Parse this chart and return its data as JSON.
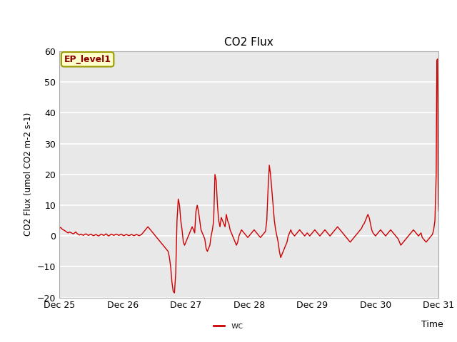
{
  "title": "CO2 Flux",
  "xlabel": "Time",
  "ylabel": "CO2 Flux (umol CO2 m-2 s-1)",
  "ylim": [
    -20,
    60
  ],
  "yticks": [
    -20,
    -10,
    0,
    10,
    20,
    30,
    40,
    50,
    60
  ],
  "line_color": "#cc0000",
  "line_label": "wc",
  "legend_label": "EP_level1",
  "legend_box_facecolor": "#ffffcc",
  "legend_box_edgecolor": "#999900",
  "legend_text_color": "#880000",
  "bg_color": "#e8e8e8",
  "fig_bg_color": "#ffffff",
  "x_start": 0.0,
  "x_end": 6.0,
  "xtick_positions": [
    0,
    1,
    2,
    3,
    4,
    5,
    6
  ],
  "xtick_labels": [
    "Dec 25",
    "Dec 26",
    "Dec 27",
    "Dec 28",
    "Dec 29",
    "Dec 30",
    "Dec 31"
  ],
  "data_points": [
    [
      0.0,
      2.5
    ],
    [
      0.02,
      2.8
    ],
    [
      0.04,
      2.3
    ],
    [
      0.06,
      2.0
    ],
    [
      0.08,
      1.8
    ],
    [
      0.1,
      1.5
    ],
    [
      0.12,
      1.2
    ],
    [
      0.14,
      1.0
    ],
    [
      0.16,
      1.3
    ],
    [
      0.18,
      1.1
    ],
    [
      0.2,
      0.9
    ],
    [
      0.22,
      0.7
    ],
    [
      0.24,
      1.0
    ],
    [
      0.26,
      1.3
    ],
    [
      0.28,
      0.8
    ],
    [
      0.3,
      0.5
    ],
    [
      0.32,
      0.3
    ],
    [
      0.34,
      0.6
    ],
    [
      0.36,
      0.4
    ],
    [
      0.38,
      0.2
    ],
    [
      0.4,
      0.5
    ],
    [
      0.42,
      0.7
    ],
    [
      0.44,
      0.4
    ],
    [
      0.46,
      0.2
    ],
    [
      0.48,
      0.4
    ],
    [
      0.5,
      0.6
    ],
    [
      0.52,
      0.3
    ],
    [
      0.54,
      0.1
    ],
    [
      0.56,
      0.3
    ],
    [
      0.58,
      0.5
    ],
    [
      0.6,
      0.2
    ],
    [
      0.62,
      0.0
    ],
    [
      0.64,
      0.3
    ],
    [
      0.66,
      0.6
    ],
    [
      0.68,
      0.4
    ],
    [
      0.7,
      0.2
    ],
    [
      0.72,
      0.4
    ],
    [
      0.74,
      0.7
    ],
    [
      0.76,
      0.3
    ],
    [
      0.78,
      0.0
    ],
    [
      0.8,
      0.3
    ],
    [
      0.82,
      0.6
    ],
    [
      0.84,
      0.4
    ],
    [
      0.86,
      0.2
    ],
    [
      0.88,
      0.4
    ],
    [
      0.9,
      0.6
    ],
    [
      0.92,
      0.4
    ],
    [
      0.94,
      0.2
    ],
    [
      0.96,
      0.4
    ],
    [
      0.98,
      0.6
    ],
    [
      1.0,
      0.3
    ],
    [
      1.02,
      0.1
    ],
    [
      1.04,
      0.3
    ],
    [
      1.06,
      0.5
    ],
    [
      1.08,
      0.3
    ],
    [
      1.1,
      0.1
    ],
    [
      1.12,
      0.3
    ],
    [
      1.14,
      0.5
    ],
    [
      1.16,
      0.3
    ],
    [
      1.18,
      0.1
    ],
    [
      1.2,
      0.3
    ],
    [
      1.22,
      0.5
    ],
    [
      1.24,
      0.3
    ],
    [
      1.26,
      0.1
    ],
    [
      1.28,
      0.3
    ],
    [
      1.3,
      0.5
    ],
    [
      1.32,
      1.0
    ],
    [
      1.34,
      1.5
    ],
    [
      1.36,
      2.0
    ],
    [
      1.38,
      2.5
    ],
    [
      1.4,
      3.0
    ],
    [
      1.42,
      2.5
    ],
    [
      1.44,
      2.0
    ],
    [
      1.46,
      1.5
    ],
    [
      1.48,
      1.0
    ],
    [
      1.5,
      0.5
    ],
    [
      1.52,
      0.0
    ],
    [
      1.54,
      -0.5
    ],
    [
      1.56,
      -1.0
    ],
    [
      1.58,
      -1.5
    ],
    [
      1.6,
      -2.0
    ],
    [
      1.62,
      -2.5
    ],
    [
      1.64,
      -3.0
    ],
    [
      1.66,
      -3.5
    ],
    [
      1.68,
      -4.0
    ],
    [
      1.7,
      -4.5
    ],
    [
      1.72,
      -5.0
    ],
    [
      1.74,
      -7.0
    ],
    [
      1.76,
      -10.0
    ],
    [
      1.78,
      -15.0
    ],
    [
      1.8,
      -18.0
    ],
    [
      1.82,
      -18.5
    ],
    [
      1.84,
      -12.0
    ],
    [
      1.86,
      5.0
    ],
    [
      1.88,
      12.0
    ],
    [
      1.9,
      10.0
    ],
    [
      1.92,
      5.0
    ],
    [
      1.94,
      2.0
    ],
    [
      1.96,
      -2.0
    ],
    [
      1.98,
      -3.0
    ],
    [
      2.0,
      -2.0
    ],
    [
      2.02,
      -1.0
    ],
    [
      2.04,
      0.0
    ],
    [
      2.06,
      1.0
    ],
    [
      2.08,
      2.0
    ],
    [
      2.1,
      3.0
    ],
    [
      2.12,
      2.0
    ],
    [
      2.14,
      1.0
    ],
    [
      2.16,
      8.0
    ],
    [
      2.18,
      10.0
    ],
    [
      2.2,
      8.0
    ],
    [
      2.22,
      5.0
    ],
    [
      2.24,
      2.0
    ],
    [
      2.26,
      1.0
    ],
    [
      2.28,
      0.0
    ],
    [
      2.3,
      -1.0
    ],
    [
      2.32,
      -4.0
    ],
    [
      2.34,
      -5.0
    ],
    [
      2.36,
      -4.0
    ],
    [
      2.38,
      -3.0
    ],
    [
      2.4,
      0.0
    ],
    [
      2.42,
      2.0
    ],
    [
      2.44,
      5.0
    ],
    [
      2.46,
      20.0
    ],
    [
      2.48,
      18.0
    ],
    [
      2.5,
      10.0
    ],
    [
      2.52,
      5.0
    ],
    [
      2.54,
      3.0
    ],
    [
      2.56,
      6.0
    ],
    [
      2.58,
      5.0
    ],
    [
      2.6,
      4.0
    ],
    [
      2.62,
      3.0
    ],
    [
      2.64,
      7.0
    ],
    [
      2.66,
      5.0
    ],
    [
      2.68,
      4.0
    ],
    [
      2.7,
      2.0
    ],
    [
      2.72,
      1.0
    ],
    [
      2.74,
      0.0
    ],
    [
      2.76,
      -1.0
    ],
    [
      2.78,
      -2.0
    ],
    [
      2.8,
      -3.0
    ],
    [
      2.82,
      -2.0
    ],
    [
      2.84,
      0.0
    ],
    [
      2.86,
      1.0
    ],
    [
      2.88,
      2.0
    ],
    [
      2.9,
      1.5
    ],
    [
      2.92,
      1.0
    ],
    [
      2.94,
      0.5
    ],
    [
      2.96,
      0.0
    ],
    [
      2.98,
      -0.5
    ],
    [
      3.0,
      0.0
    ],
    [
      3.02,
      0.5
    ],
    [
      3.04,
      1.0
    ],
    [
      3.06,
      1.5
    ],
    [
      3.08,
      2.0
    ],
    [
      3.1,
      1.5
    ],
    [
      3.12,
      1.0
    ],
    [
      3.14,
      0.5
    ],
    [
      3.16,
      0.0
    ],
    [
      3.18,
      -0.5
    ],
    [
      3.2,
      0.0
    ],
    [
      3.22,
      0.5
    ],
    [
      3.24,
      1.0
    ],
    [
      3.26,
      1.5
    ],
    [
      3.28,
      5.0
    ],
    [
      3.3,
      15.0
    ],
    [
      3.32,
      23.0
    ],
    [
      3.34,
      20.0
    ],
    [
      3.36,
      15.0
    ],
    [
      3.38,
      10.0
    ],
    [
      3.4,
      5.0
    ],
    [
      3.42,
      2.0
    ],
    [
      3.44,
      0.0
    ],
    [
      3.46,
      -2.0
    ],
    [
      3.48,
      -5.0
    ],
    [
      3.5,
      -7.0
    ],
    [
      3.52,
      -6.0
    ],
    [
      3.54,
      -5.0
    ],
    [
      3.56,
      -4.0
    ],
    [
      3.58,
      -3.0
    ],
    [
      3.6,
      -2.0
    ],
    [
      3.62,
      0.0
    ],
    [
      3.64,
      1.0
    ],
    [
      3.66,
      2.0
    ],
    [
      3.68,
      1.0
    ],
    [
      3.7,
      0.5
    ],
    [
      3.72,
      0.0
    ],
    [
      3.74,
      0.5
    ],
    [
      3.76,
      1.0
    ],
    [
      3.78,
      1.5
    ],
    [
      3.8,
      2.0
    ],
    [
      3.82,
      1.5
    ],
    [
      3.84,
      1.0
    ],
    [
      3.86,
      0.5
    ],
    [
      3.88,
      0.0
    ],
    [
      3.9,
      0.5
    ],
    [
      3.92,
      1.0
    ],
    [
      3.94,
      0.5
    ],
    [
      3.96,
      0.0
    ],
    [
      3.98,
      0.5
    ],
    [
      4.0,
      1.0
    ],
    [
      4.02,
      1.5
    ],
    [
      4.04,
      2.0
    ],
    [
      4.06,
      1.5
    ],
    [
      4.08,
      1.0
    ],
    [
      4.1,
      0.5
    ],
    [
      4.12,
      0.0
    ],
    [
      4.14,
      0.5
    ],
    [
      4.16,
      1.0
    ],
    [
      4.18,
      1.5
    ],
    [
      4.2,
      2.0
    ],
    [
      4.22,
      1.5
    ],
    [
      4.24,
      1.0
    ],
    [
      4.26,
      0.5
    ],
    [
      4.28,
      0.0
    ],
    [
      4.3,
      0.5
    ],
    [
      4.32,
      1.0
    ],
    [
      4.34,
      1.5
    ],
    [
      4.36,
      2.0
    ],
    [
      4.38,
      2.5
    ],
    [
      4.4,
      3.0
    ],
    [
      4.42,
      2.5
    ],
    [
      4.44,
      2.0
    ],
    [
      4.46,
      1.5
    ],
    [
      4.48,
      1.0
    ],
    [
      4.5,
      0.5
    ],
    [
      4.52,
      0.0
    ],
    [
      4.54,
      -0.5
    ],
    [
      4.56,
      -1.0
    ],
    [
      4.58,
      -1.5
    ],
    [
      4.6,
      -2.0
    ],
    [
      4.62,
      -1.5
    ],
    [
      4.64,
      -1.0
    ],
    [
      4.66,
      -0.5
    ],
    [
      4.68,
      0.0
    ],
    [
      4.7,
      0.5
    ],
    [
      4.72,
      1.0
    ],
    [
      4.74,
      1.5
    ],
    [
      4.76,
      2.0
    ],
    [
      4.78,
      2.5
    ],
    [
      4.8,
      3.5
    ],
    [
      4.82,
      4.0
    ],
    [
      4.84,
      5.0
    ],
    [
      4.86,
      6.0
    ],
    [
      4.88,
      7.0
    ],
    [
      4.9,
      6.0
    ],
    [
      4.92,
      4.0
    ],
    [
      4.94,
      2.0
    ],
    [
      4.96,
      1.0
    ],
    [
      4.98,
      0.5
    ],
    [
      5.0,
      0.0
    ],
    [
      5.02,
      0.5
    ],
    [
      5.04,
      1.0
    ],
    [
      5.06,
      1.5
    ],
    [
      5.08,
      2.0
    ],
    [
      5.1,
      1.5
    ],
    [
      5.12,
      1.0
    ],
    [
      5.14,
      0.5
    ],
    [
      5.16,
      0.0
    ],
    [
      5.18,
      0.5
    ],
    [
      5.2,
      1.0
    ],
    [
      5.22,
      1.5
    ],
    [
      5.24,
      2.0
    ],
    [
      5.26,
      1.5
    ],
    [
      5.28,
      1.0
    ],
    [
      5.3,
      0.5
    ],
    [
      5.32,
      0.0
    ],
    [
      5.34,
      -0.5
    ],
    [
      5.36,
      -1.0
    ],
    [
      5.38,
      -2.0
    ],
    [
      5.4,
      -3.0
    ],
    [
      5.42,
      -2.5
    ],
    [
      5.44,
      -2.0
    ],
    [
      5.46,
      -1.5
    ],
    [
      5.48,
      -1.0
    ],
    [
      5.5,
      -0.5
    ],
    [
      5.52,
      0.0
    ],
    [
      5.54,
      0.5
    ],
    [
      5.56,
      1.0
    ],
    [
      5.58,
      1.5
    ],
    [
      5.6,
      2.0
    ],
    [
      5.62,
      1.5
    ],
    [
      5.64,
      1.0
    ],
    [
      5.66,
      0.5
    ],
    [
      5.68,
      0.0
    ],
    [
      5.7,
      0.5
    ],
    [
      5.72,
      1.0
    ],
    [
      5.74,
      -0.5
    ],
    [
      5.76,
      -1.0
    ],
    [
      5.78,
      -1.5
    ],
    [
      5.8,
      -2.0
    ],
    [
      5.82,
      -1.5
    ],
    [
      5.84,
      -1.0
    ],
    [
      5.86,
      -0.5
    ],
    [
      5.88,
      0.0
    ],
    [
      5.9,
      0.5
    ],
    [
      5.92,
      2.0
    ],
    [
      5.94,
      5.0
    ],
    [
      5.96,
      20.0
    ],
    [
      5.97,
      57.0
    ],
    [
      5.98,
      57.5
    ],
    [
      5.985,
      45.0
    ],
    [
      5.99,
      20.0
    ],
    [
      5.995,
      10.0
    ],
    [
      6.0,
      8.0
    ]
  ]
}
